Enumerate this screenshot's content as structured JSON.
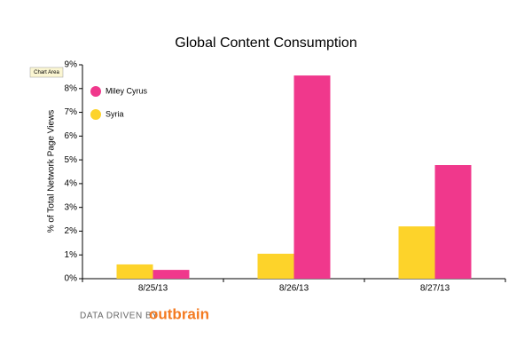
{
  "chart_data": {
    "type": "bar",
    "title": "Global Content Consumption",
    "y_label": "% of Total Network Page Views",
    "categories": [
      "8/25/13",
      "8/26/13",
      "8/27/13"
    ],
    "series": [
      {
        "name": "Miley Cyrus",
        "color": "#f0388c",
        "values": [
          0.37,
          8.55,
          4.78
        ]
      },
      {
        "name": "Syria",
        "color": "#fdd32a",
        "values": [
          0.6,
          1.05,
          2.2
        ]
      }
    ],
    "ylim": [
      0,
      9
    ],
    "yticks": [
      {
        "value": 0,
        "label": "0%"
      },
      {
        "value": 1,
        "label": "1%"
      },
      {
        "value": 2,
        "label": "2%"
      },
      {
        "value": 3,
        "label": "3%"
      },
      {
        "value": 4,
        "label": "4%"
      },
      {
        "value": 5,
        "label": "5%"
      },
      {
        "value": 6,
        "label": "6%"
      },
      {
        "value": 7,
        "label": "7%"
      },
      {
        "value": 8,
        "label": "8%"
      },
      {
        "value": 9,
        "label": "9%"
      }
    ],
    "grid": false,
    "legend": "top-left"
  },
  "tooltip": "Chart Area",
  "footer": {
    "prefix": "DATA DRIVEN BY",
    "brand": "outbrain"
  }
}
